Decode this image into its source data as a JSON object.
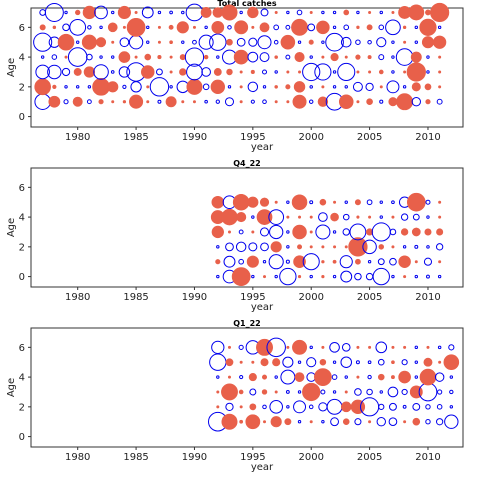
{
  "colors": {
    "positive": "#0000ee",
    "negative": "#e8604a",
    "frame": "#333333"
  },
  "chart_data": [
    {
      "type": "scatter",
      "subtype": "bubble-residuals",
      "title": "Total catches",
      "xlabel": "year",
      "ylabel": "Age",
      "xlim": [
        1976,
        2013
      ],
      "ylim": [
        -0.7,
        7.3
      ],
      "xticks": [
        1980,
        1985,
        1990,
        1995,
        2000,
        2005,
        2010
      ],
      "yticks": [
        0,
        2,
        4,
        6
      ],
      "x_range": [
        1977,
        2011
      ],
      "y_range": [
        1,
        7
      ],
      "seed": 7
    },
    {
      "type": "scatter",
      "subtype": "bubble-residuals",
      "title": "Q4_22",
      "xlabel": "year",
      "ylabel": "Age",
      "xlim": [
        1976,
        2013
      ],
      "ylim": [
        -0.7,
        7.3
      ],
      "xticks": [
        1980,
        1985,
        1990,
        1995,
        2000,
        2005,
        2010
      ],
      "yticks": [
        0,
        2,
        4,
        6
      ],
      "x_range": [
        1992,
        2011
      ],
      "y_range": [
        0,
        5
      ],
      "seed": 22
    },
    {
      "type": "scatter",
      "subtype": "bubble-residuals",
      "title": "Q1_22",
      "xlabel": "year",
      "ylabel": "Age",
      "xlim": [
        1976,
        2013
      ],
      "ylim": [
        -0.7,
        7.3
      ],
      "xticks": [
        1980,
        1985,
        1990,
        1995,
        2000,
        2005,
        2010
      ],
      "yticks": [
        0,
        2,
        4,
        6
      ],
      "x_range": [
        1992,
        2012
      ],
      "y_range": [
        1,
        6
      ],
      "seed": 41
    }
  ]
}
